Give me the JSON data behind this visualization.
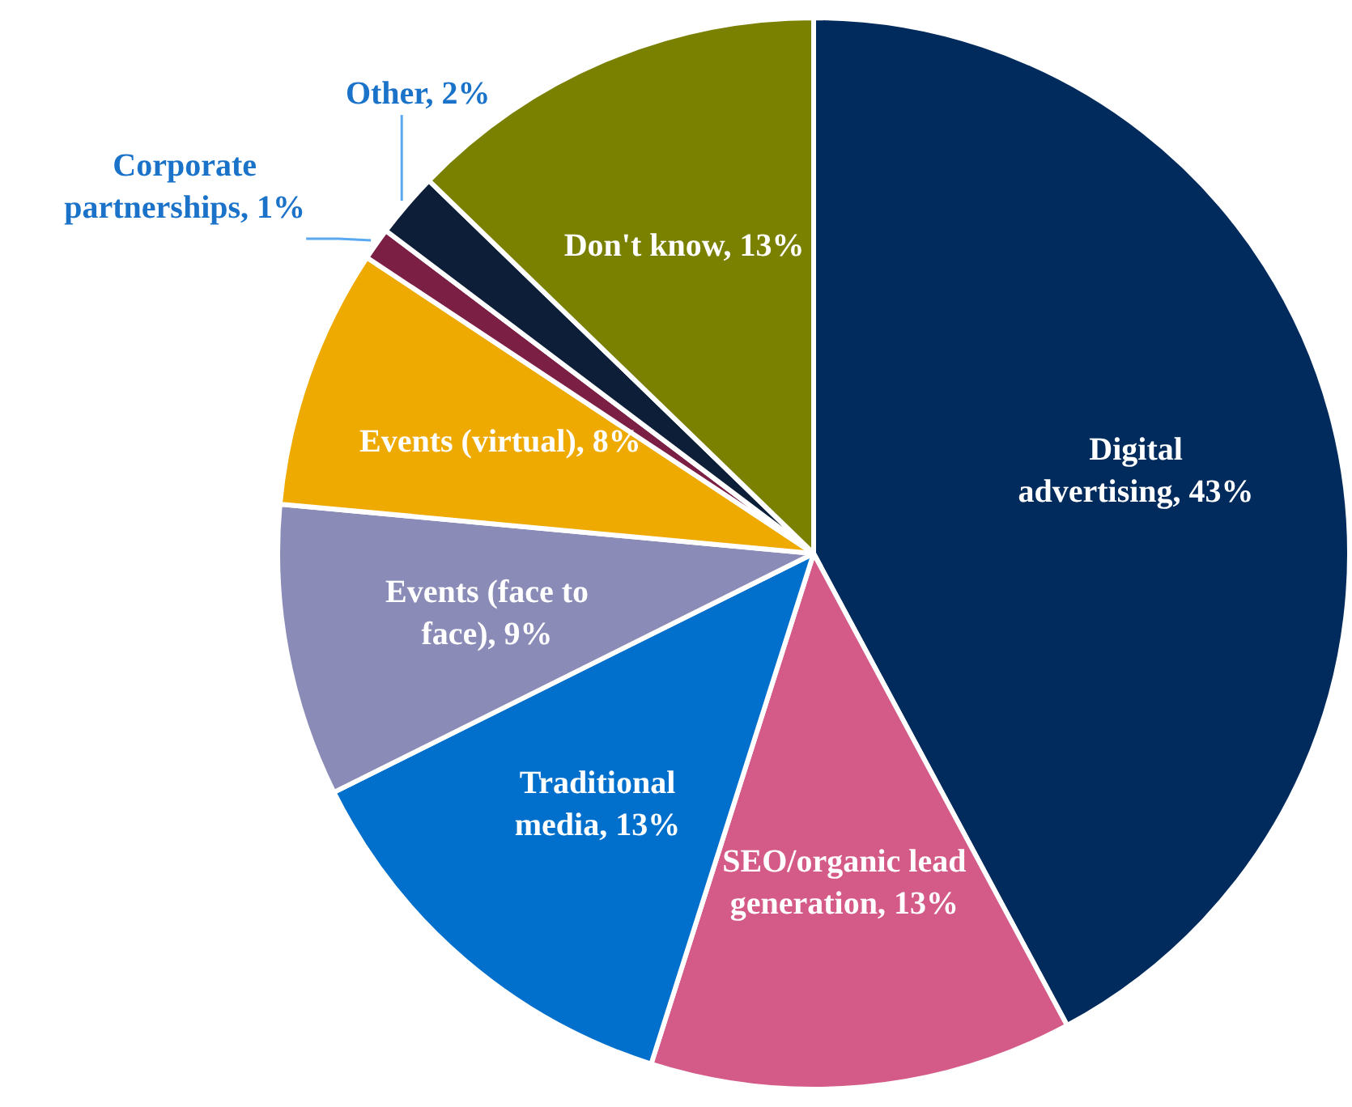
{
  "chart_data": {
    "type": "pie",
    "categories": [
      "Digital advertising",
      "SEO/organic lead generation",
      "Traditional media",
      "Events (face to face)",
      "Events (virtual)",
      "Corporate partnerships",
      "Other",
      "Don't know"
    ],
    "values": [
      43,
      13,
      13,
      9,
      8,
      1,
      2,
      13
    ],
    "value_labels": [
      "43%",
      "13%",
      "13%",
      "9%",
      "8%",
      "1%",
      "2%",
      "13%"
    ],
    "colors": [
      "#002b5c",
      "#d45b87",
      "#0070cc",
      "#8b8bb8",
      "#eeaa00",
      "#7b1f45",
      "#0c1e38",
      "#7a8000"
    ]
  }
}
